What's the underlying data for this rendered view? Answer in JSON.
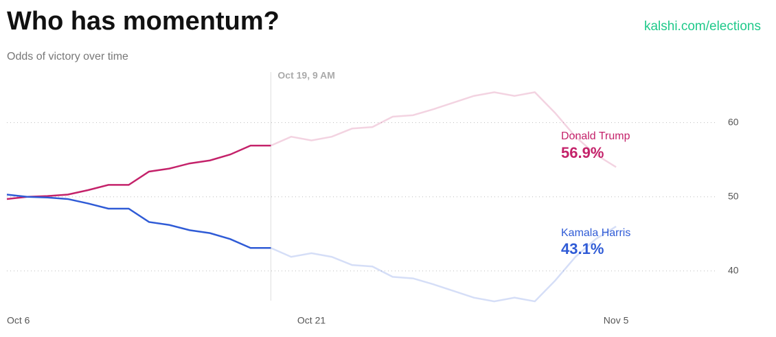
{
  "header": {
    "title": "Who has momentum?",
    "subtitle": "Odds of victory over time",
    "link": "kalshi.com/elections"
  },
  "chart_data": {
    "type": "line",
    "x": [
      "Oct 6",
      "Oct 7",
      "Oct 8",
      "Oct 9",
      "Oct 10",
      "Oct 11",
      "Oct 12",
      "Oct 13",
      "Oct 14",
      "Oct 15",
      "Oct 16",
      "Oct 17",
      "Oct 18",
      "Oct 19",
      "Oct 20",
      "Oct 21",
      "Oct 22",
      "Oct 23",
      "Oct 24",
      "Oct 25",
      "Oct 26",
      "Oct 27",
      "Oct 28",
      "Oct 29",
      "Oct 30",
      "Oct 31",
      "Nov 1",
      "Nov 2",
      "Nov 3",
      "Nov 4",
      "Nov 5"
    ],
    "xticks": [
      "Oct 6",
      "Oct 21",
      "Nov 5"
    ],
    "hover_label": "Oct 19, 9 AM",
    "series": [
      {
        "name": "Donald Trump",
        "color": "#c4226a",
        "current_label": "56.9%",
        "values": [
          49.7,
          50,
          50.1,
          50.3,
          50.9,
          51.6,
          51.6,
          53.4,
          53.8,
          54.5,
          54.9,
          55.7,
          56.9,
          56.9,
          58.1,
          57.6,
          58.1,
          59.2,
          59.4,
          60.8,
          61,
          61.8,
          62.7,
          63.6,
          64.1,
          63.6,
          64.1,
          61.3,
          58.1,
          55.7,
          54
        ]
      },
      {
        "name": "Kamala Harris",
        "color": "#2f5bd6",
        "current_label": "43.1%",
        "values": [
          50.3,
          50,
          49.9,
          49.7,
          49.1,
          48.4,
          48.4,
          46.6,
          46.2,
          45.5,
          45.1,
          44.3,
          43.1,
          43.1,
          41.9,
          42.4,
          41.9,
          40.8,
          40.6,
          39.2,
          39,
          38.2,
          37.3,
          36.4,
          35.9,
          36.4,
          35.9,
          38.7,
          41.9,
          44.3,
          46
        ]
      }
    ],
    "ylim": [
      36,
      67
    ],
    "yticks": [
      40,
      50,
      60
    ],
    "grid": true
  }
}
